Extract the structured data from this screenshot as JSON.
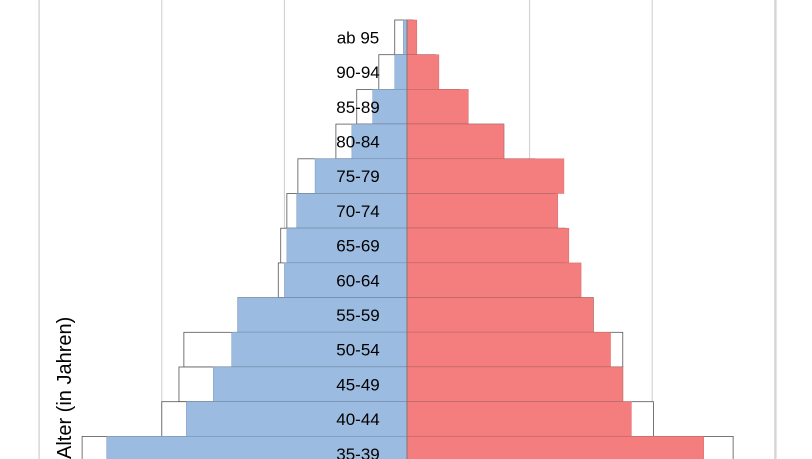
{
  "chart_data": {
    "type": "bar",
    "orientation": "horizontal-pyramid",
    "ylabel": "Alter (in Jahren)",
    "categories": [
      "ab 95",
      "90-94",
      "85-89",
      "80-84",
      "75-79",
      "70-74",
      "65-69",
      "60-64",
      "55-59",
      "50-54",
      "45-49",
      "40-44",
      "35-39"
    ],
    "series": [
      {
        "values": [
          1.0,
          2.3,
          4.1,
          5.8,
          8.9,
          9.8,
          10.3,
          10.5,
          13.8,
          18.2,
          18.6,
          20.0,
          26.5
        ]
      },
      {
        "values": [
          0.3,
          1.0,
          2.8,
          4.5,
          7.5,
          9.0,
          9.8,
          10.0,
          13.8,
          14.3,
          15.8,
          18.0,
          24.5
        ]
      },
      {
        "values": [
          0.8,
          2.6,
          5.0,
          7.9,
          12.8,
          12.3,
          13.2,
          14.2,
          15.2,
          16.6,
          17.6,
          18.3,
          24.2
        ]
      },
      {
        "values": [
          0.5,
          2.3,
          4.3,
          7.9,
          10.4,
          12.1,
          12.9,
          12.9,
          15.2,
          17.6,
          17.6,
          20.1,
          26.6
        ]
      }
    ],
    "colors": {
      "male": "#9bbbe0",
      "female": "#f47d7d",
      "outline": "#555555",
      "grid": "#cccccc"
    },
    "xlim": [
      -45,
      45
    ],
    "grid": true
  }
}
